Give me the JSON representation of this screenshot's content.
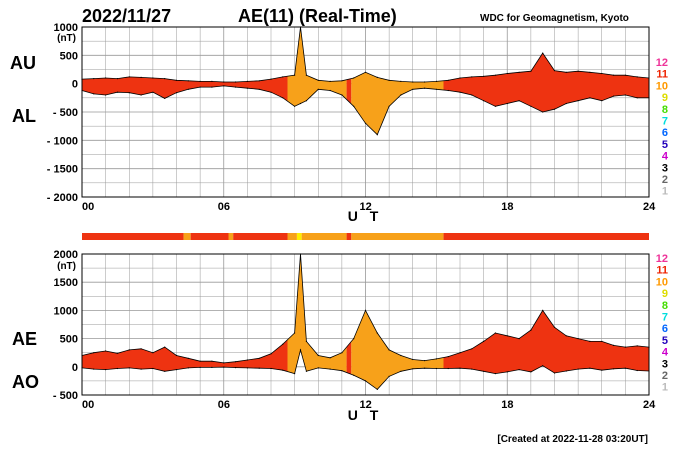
{
  "header": {
    "date": "2022/11/27",
    "title": "AE(11) (Real-Time)",
    "credit": "WDC for Geomagnetism, Kyoto"
  },
  "footer": {
    "created": "[Created at 2022-11-28 03:20UT]"
  },
  "colors": {
    "red": "#ee3311",
    "orange": "#f7a11a",
    "yellow": "#ffee00",
    "grid": "#999999",
    "line": "#000000"
  },
  "legend": [
    {
      "label": "12",
      "color": "#ee3399"
    },
    {
      "label": "11",
      "color": "#ee2200"
    },
    {
      "label": "10",
      "color": "#ff9900"
    },
    {
      "label": "9",
      "color": "#dddd00"
    },
    {
      "label": "8",
      "color": "#44dd00"
    },
    {
      "label": "7",
      "color": "#00dddd"
    },
    {
      "label": "6",
      "color": "#0066ff"
    },
    {
      "label": "5",
      "color": "#2200bb"
    },
    {
      "label": "4",
      "color": "#cc00cc"
    },
    {
      "label": "3",
      "color": "#000000"
    },
    {
      "label": "2",
      "color": "#666666"
    },
    {
      "label": "1",
      "color": "#bbbbbb"
    }
  ],
  "chart_data": [
    {
      "type": "area",
      "name": "AU/AL panel",
      "side_labels": [
        "AU",
        "AL"
      ],
      "unit": "(nT)",
      "xlabel": "U T",
      "xlim": [
        0,
        24
      ],
      "xticks": [
        "00",
        "06",
        "12",
        "18",
        "24"
      ],
      "ylim": [
        -2000,
        1000
      ],
      "yticks": [
        "1000",
        "500",
        "0",
        "- 500",
        "- 1000",
        "- 1500",
        "- 2000"
      ],
      "ytick_values": [
        1000,
        500,
        0,
        -500,
        -1000,
        -1500,
        -2000
      ],
      "x": [
        0,
        0.5,
        1,
        1.5,
        2,
        2.5,
        3,
        3.5,
        4,
        4.5,
        5,
        5.5,
        6,
        6.5,
        7,
        7.5,
        8,
        8.5,
        9,
        9.25,
        9.5,
        10,
        10.5,
        11,
        11.5,
        12,
        12.5,
        13,
        13.5,
        14,
        14.5,
        15,
        15.5,
        16,
        16.5,
        17,
        17.5,
        18,
        18.5,
        19,
        19.5,
        20,
        20.5,
        21,
        21.5,
        22,
        22.5,
        23,
        23.5,
        24
      ],
      "series": [
        {
          "label": "AU",
          "values": [
            80,
            90,
            100,
            90,
            120,
            110,
            100,
            90,
            60,
            50,
            40,
            40,
            30,
            30,
            40,
            50,
            80,
            120,
            150,
            1000,
            150,
            60,
            40,
            50,
            100,
            200,
            110,
            60,
            40,
            30,
            30,
            40,
            60,
            100,
            120,
            130,
            150,
            180,
            200,
            220,
            540,
            230,
            200,
            220,
            200,
            180,
            150,
            150,
            120,
            100
          ]
        },
        {
          "label": "AL",
          "values": [
            -120,
            -180,
            -200,
            -150,
            -160,
            -200,
            -150,
            -260,
            -160,
            -100,
            -60,
            -60,
            -40,
            -60,
            -80,
            -100,
            -150,
            -250,
            -400,
            -350,
            -300,
            -100,
            -120,
            -200,
            -400,
            -700,
            -900,
            -400,
            -200,
            -100,
            -80,
            -100,
            -120,
            -150,
            -200,
            -300,
            -400,
            -350,
            -300,
            -400,
            -500,
            -450,
            -350,
            -300,
            -250,
            -300,
            -220,
            -200,
            -250,
            -250
          ]
        }
      ],
      "activity_bands": [
        {
          "from": 0,
          "to": 8.7,
          "color": "red"
        },
        {
          "from": 8.7,
          "to": 11.2,
          "color": "orange"
        },
        {
          "from": 11.2,
          "to": 11.4,
          "color": "red"
        },
        {
          "from": 11.4,
          "to": 15.3,
          "color": "orange"
        },
        {
          "from": 15.3,
          "to": 24,
          "color": "red"
        }
      ]
    },
    {
      "type": "area",
      "name": "AE/AO panel",
      "side_labels": [
        "AE",
        "AO"
      ],
      "unit": "(nT)",
      "xlabel": "U T",
      "xlim": [
        0,
        24
      ],
      "xticks": [
        "00",
        "06",
        "12",
        "18",
        "24"
      ],
      "ylim": [
        -500,
        2000
      ],
      "yticks": [
        "2000",
        "1500",
        "1000",
        "500",
        "0",
        "- 500"
      ],
      "ytick_values": [
        2000,
        1500,
        1000,
        500,
        0,
        -500
      ],
      "x": [
        0,
        0.5,
        1,
        1.5,
        2,
        2.5,
        3,
        3.5,
        4,
        4.5,
        5,
        5.5,
        6,
        6.5,
        7,
        7.5,
        8,
        8.5,
        9,
        9.25,
        9.5,
        10,
        10.5,
        11,
        11.5,
        12,
        12.5,
        13,
        13.5,
        14,
        14.5,
        15,
        15.5,
        16,
        16.5,
        17,
        17.5,
        18,
        18.5,
        19,
        19.5,
        20,
        20.5,
        21,
        21.5,
        22,
        22.5,
        23,
        23.5,
        24
      ],
      "series": [
        {
          "label": "AE",
          "values": [
            200,
            250,
            280,
            240,
            300,
            320,
            250,
            350,
            200,
            150,
            100,
            100,
            70,
            90,
            120,
            150,
            230,
            400,
            600,
            2000,
            450,
            200,
            160,
            250,
            500,
            1000,
            600,
            300,
            200,
            130,
            110,
            140,
            180,
            250,
            320,
            450,
            600,
            550,
            500,
            650,
            1000,
            700,
            550,
            500,
            450,
            450,
            380,
            350,
            370,
            350
          ]
        },
        {
          "label": "AO",
          "values": [
            -20,
            -40,
            -50,
            -30,
            -20,
            -40,
            -30,
            -80,
            -50,
            -20,
            -10,
            -10,
            -5,
            -15,
            -20,
            -25,
            -30,
            -60,
            -120,
            300,
            -80,
            -20,
            -40,
            -70,
            -150,
            -250,
            -400,
            -170,
            -80,
            -35,
            -25,
            -30,
            -30,
            -25,
            -40,
            -80,
            -120,
            -90,
            -50,
            -90,
            20,
            -110,
            -75,
            -40,
            -25,
            -60,
            -35,
            -25,
            -65,
            -75
          ]
        }
      ],
      "activity_bands": [
        {
          "from": 0,
          "to": 8.7,
          "color": "red"
        },
        {
          "from": 8.7,
          "to": 11.2,
          "color": "orange"
        },
        {
          "from": 11.2,
          "to": 11.4,
          "color": "red"
        },
        {
          "from": 11.4,
          "to": 15.3,
          "color": "orange"
        },
        {
          "from": 15.3,
          "to": 24,
          "color": "red"
        }
      ]
    }
  ],
  "activity_strip": [
    {
      "from": 0,
      "to": 4.3,
      "color": "red"
    },
    {
      "from": 4.3,
      "to": 4.6,
      "color": "orange"
    },
    {
      "from": 4.6,
      "to": 6.2,
      "color": "red"
    },
    {
      "from": 6.2,
      "to": 6.4,
      "color": "orange"
    },
    {
      "from": 6.4,
      "to": 8.7,
      "color": "red"
    },
    {
      "from": 8.7,
      "to": 9.1,
      "color": "orange"
    },
    {
      "from": 9.1,
      "to": 9.3,
      "color": "yellow"
    },
    {
      "from": 9.3,
      "to": 11.2,
      "color": "orange"
    },
    {
      "from": 11.2,
      "to": 11.4,
      "color": "red"
    },
    {
      "from": 11.4,
      "to": 15.3,
      "color": "orange"
    },
    {
      "from": 15.3,
      "to": 24,
      "color": "red"
    }
  ]
}
